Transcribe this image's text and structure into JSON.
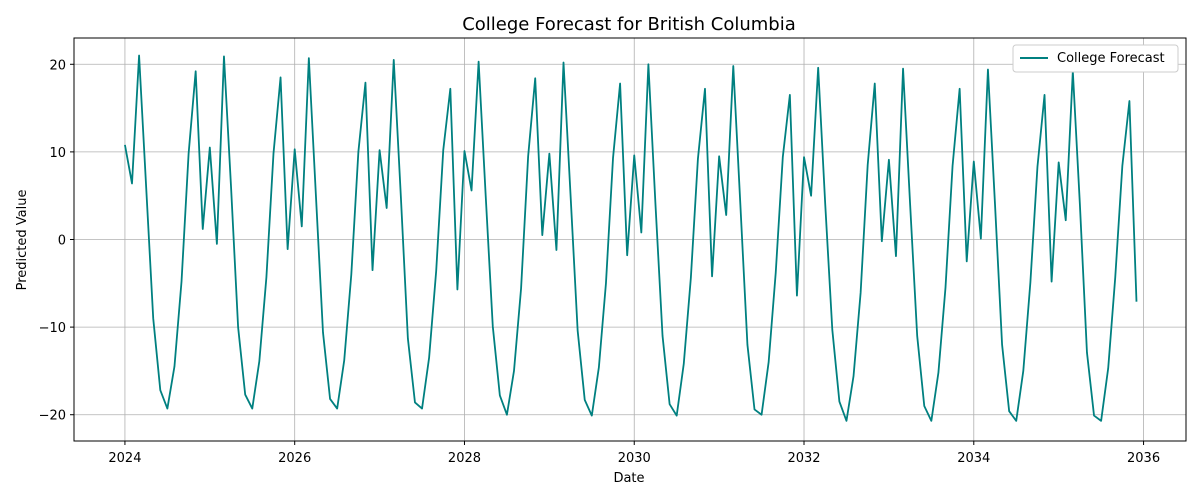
{
  "chart_data": {
    "type": "line",
    "title": "College Forecast for British Columbia",
    "xlabel": "Date",
    "ylabel": "Predicted Value",
    "xlim": [
      2023.4,
      2036.5
    ],
    "ylim": [
      -23,
      23
    ],
    "xticks": [
      2024,
      2026,
      2028,
      2030,
      2032,
      2034,
      2036
    ],
    "xtick_labels": [
      "2024",
      "2026",
      "2028",
      "2030",
      "2032",
      "2034",
      "2036"
    ],
    "yticks": [
      -20,
      -10,
      0,
      10,
      20
    ],
    "ytick_labels": [
      "−20",
      "−10",
      "0",
      "10",
      "20"
    ],
    "grid": true,
    "legend_position": "top-right",
    "line_color": "#008080",
    "series": [
      {
        "name": "College Forecast",
        "x": [
          2024.0,
          2024.0833,
          2024.1667,
          2024.25,
          2024.3333,
          2024.4167,
          2024.5,
          2024.5833,
          2024.6667,
          2024.75,
          2024.8333,
          2024.9167,
          2025.0,
          2025.0833,
          2025.1667,
          2025.25,
          2025.3333,
          2025.4167,
          2025.5,
          2025.5833,
          2025.6667,
          2025.75,
          2025.8333,
          2025.9167,
          2026.0,
          2026.0833,
          2026.1667,
          2026.25,
          2026.3333,
          2026.4167,
          2026.5,
          2026.5833,
          2026.6667,
          2026.75,
          2026.8333,
          2026.9167,
          2027.0,
          2027.0833,
          2027.1667,
          2027.25,
          2027.3333,
          2027.4167,
          2027.5,
          2027.5833,
          2027.6667,
          2027.75,
          2027.8333,
          2027.9167,
          2028.0,
          2028.0833,
          2028.1667,
          2028.25,
          2028.3333,
          2028.4167,
          2028.5,
          2028.5833,
          2028.6667,
          2028.75,
          2028.8333,
          2028.9167,
          2029.0,
          2029.0833,
          2029.1667,
          2029.25,
          2029.3333,
          2029.4167,
          2029.5,
          2029.5833,
          2029.6667,
          2029.75,
          2029.8333,
          2029.9167,
          2030.0,
          2030.0833,
          2030.1667,
          2030.25,
          2030.3333,
          2030.4167,
          2030.5,
          2030.5833,
          2030.6667,
          2030.75,
          2030.8333,
          2030.9167,
          2031.0,
          2031.0833,
          2031.1667,
          2031.25,
          2031.3333,
          2031.4167,
          2031.5,
          2031.5833,
          2031.6667,
          2031.75,
          2031.8333,
          2031.9167,
          2032.0,
          2032.0833,
          2032.1667,
          2032.25,
          2032.3333,
          2032.4167,
          2032.5,
          2032.5833,
          2032.6667,
          2032.75,
          2032.8333,
          2032.9167,
          2033.0,
          2033.0833,
          2033.1667,
          2033.25,
          2033.3333,
          2033.4167,
          2033.5,
          2033.5833,
          2033.6667,
          2033.75,
          2033.8333,
          2033.9167,
          2034.0,
          2034.0833,
          2034.1667,
          2034.25,
          2034.3333,
          2034.4167,
          2034.5,
          2034.5833,
          2034.6667,
          2034.75,
          2034.8333,
          2034.9167,
          2035.0,
          2035.0833,
          2035.1667,
          2035.25,
          2035.3333,
          2035.4167,
          2035.5,
          2035.5833,
          2035.6667,
          2035.75,
          2035.8333,
          2035.9167
        ],
        "values": [
          10.8,
          6.4,
          21.0,
          6.0,
          -9.0,
          -17.2,
          -19.3,
          -14.5,
          -4.8,
          9.8,
          19.2,
          1.2,
          10.5,
          -0.5,
          20.9,
          6.0,
          -10.0,
          -17.7,
          -19.3,
          -13.9,
          -4.3,
          9.8,
          18.5,
          -1.1,
          10.3,
          1.5,
          20.7,
          5.0,
          -10.6,
          -18.2,
          -19.3,
          -13.8,
          -4.0,
          10.0,
          17.9,
          -3.5,
          10.2,
          3.6,
          20.5,
          5.0,
          -11.3,
          -18.6,
          -19.3,
          -13.5,
          -3.6,
          10.2,
          17.2,
          -5.7,
          10.1,
          5.6,
          20.3,
          5.0,
          -9.9,
          -17.8,
          -20.0,
          -15.0,
          -5.6,
          9.5,
          18.4,
          0.5,
          9.8,
          -1.2,
          20.2,
          5.0,
          -10.4,
          -18.3,
          -20.1,
          -14.6,
          -5.0,
          9.3,
          17.8,
          -1.8,
          9.6,
          0.8,
          20.0,
          4.0,
          -11.0,
          -18.8,
          -20.1,
          -14.2,
          -4.4,
          9.2,
          17.2,
          -4.2,
          9.5,
          2.8,
          19.8,
          4.0,
          -12.0,
          -19.4,
          -20.0,
          -14.0,
          -3.8,
          9.4,
          16.5,
          -6.4,
          9.4,
          5.0,
          19.6,
          4.0,
          -10.3,
          -18.5,
          -20.7,
          -15.6,
          -6.1,
          8.5,
          17.8,
          -0.2,
          9.1,
          -1.9,
          19.5,
          4.0,
          -11.0,
          -19.0,
          -20.7,
          -15.2,
          -5.5,
          8.4,
          17.2,
          -2.5,
          8.9,
          0.1,
          19.4,
          4.0,
          -12.0,
          -19.6,
          -20.7,
          -15.0,
          -4.9,
          8.3,
          16.5,
          -4.8,
          8.8,
          2.2,
          19.2,
          4.0,
          -12.9,
          -20.1,
          -20.7,
          -14.7,
          -4.3,
          8.4,
          15.8,
          -7.1
        ]
      }
    ]
  }
}
